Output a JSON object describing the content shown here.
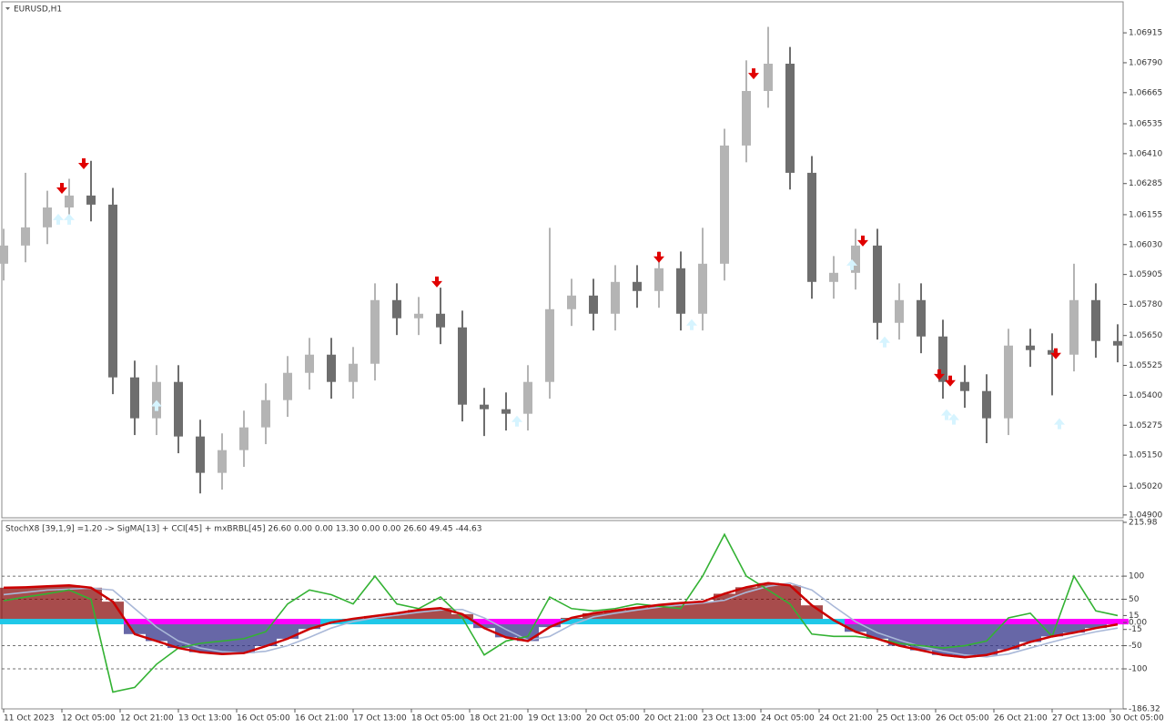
{
  "chart_data": [
    {
      "type": "candlestick",
      "title": "EURUSD,H1",
      "x": [
        0,
        6,
        12,
        18,
        24,
        30,
        36,
        42,
        48,
        54,
        60,
        66,
        72,
        78,
        84,
        90,
        96,
        102,
        108,
        114,
        120,
        126,
        132,
        138,
        144,
        150,
        156,
        162,
        168,
        174,
        180,
        186,
        192,
        198,
        204,
        210,
        216,
        222,
        228,
        234,
        240,
        246,
        252,
        258,
        264,
        270,
        276,
        282,
        288,
        294,
        300,
        306
      ],
      "open": [
        1.0595,
        1.06026,
        1.06102,
        1.06185,
        1.06235,
        1.06197,
        1.05475,
        1.05304,
        1.05456,
        1.05228,
        1.05076,
        1.05171,
        1.05266,
        1.0538,
        1.05494,
        1.0557,
        1.05456,
        1.05532,
        1.05798,
        1.05722,
        1.05741,
        1.05684,
        1.05361,
        1.05342,
        1.05323,
        1.05456,
        1.0576,
        1.05817,
        1.05741,
        1.05874,
        1.05836,
        1.05931,
        1.05741,
        1.0595,
        1.06444,
        1.06672,
        1.06786,
        1.0633,
        1.05874,
        1.05912,
        1.06026,
        1.05703,
        1.05798,
        1.05646,
        1.05456,
        1.05418,
        1.05304,
        1.05608,
        1.05589,
        1.0557,
        1.05798,
        1.05627
      ],
      "high": [
        1.06096,
        1.0633,
        1.06255,
        1.06305,
        1.0638,
        1.06267,
        1.05545,
        1.05526,
        1.05526,
        1.05298,
        1.05241,
        1.05336,
        1.0545,
        1.05564,
        1.0564,
        1.0564,
        1.05602,
        1.05868,
        1.05868,
        1.05811,
        1.0585,
        1.05754,
        1.05431,
        1.05412,
        1.05526,
        1.061,
        1.05887,
        1.05887,
        1.05944,
        1.05944,
        1.06001,
        1.06001,
        1.061,
        1.06514,
        1.068,
        1.0694,
        1.06856,
        1.064,
        1.05982,
        1.06096,
        1.06096,
        1.05868,
        1.05868,
        1.05716,
        1.05526,
        1.05488,
        1.05678,
        1.05678,
        1.05659,
        1.0595,
        1.05868,
        1.05697
      ],
      "low": [
        1.0588,
        1.05956,
        1.06032,
        1.06115,
        1.06127,
        1.05405,
        1.05234,
        1.05234,
        1.05158,
        1.0499,
        1.05006,
        1.05101,
        1.05196,
        1.0531,
        1.05424,
        1.05386,
        1.05386,
        1.05462,
        1.05652,
        1.05652,
        1.05614,
        1.05291,
        1.0523,
        1.05253,
        1.05253,
        1.05386,
        1.0569,
        1.05671,
        1.05671,
        1.05766,
        1.05766,
        1.05671,
        1.05671,
        1.0588,
        1.06374,
        1.06602,
        1.0626,
        1.05804,
        1.05804,
        1.05842,
        1.05633,
        1.05633,
        1.05576,
        1.05386,
        1.05348,
        1.052,
        1.05234,
        1.05519,
        1.054,
        1.055,
        1.05557,
        1.05538
      ],
      "close": [
        1.06026,
        1.06102,
        1.06185,
        1.06235,
        1.06197,
        1.05475,
        1.05304,
        1.05456,
        1.05228,
        1.05076,
        1.05171,
        1.05266,
        1.0538,
        1.05494,
        1.0557,
        1.05456,
        1.05532,
        1.05798,
        1.05722,
        1.05741,
        1.05684,
        1.05361,
        1.05342,
        1.05323,
        1.05456,
        1.0576,
        1.05817,
        1.05741,
        1.05874,
        1.05836,
        1.05931,
        1.05741,
        1.0595,
        1.06444,
        1.06672,
        1.06786,
        1.0633,
        1.05874,
        1.05912,
        1.06026,
        1.05703,
        1.05798,
        1.05646,
        1.05456,
        1.05418,
        1.05304,
        1.05608,
        1.05589,
        1.0557,
        1.05798,
        1.05627,
        1.05608
      ],
      "up_color": "#b4b4b4",
      "down_color": "#6e6e6e",
      "sell_signals": {
        "color": "#e00000",
        "x": [
          16,
          22,
          119,
          180,
          206,
          236,
          257,
          260,
          289
        ],
        "y": [
          1.06261,
          1.06364,
          1.0587,
          1.05973,
          1.0674,
          1.06041,
          1.05482,
          1.05456,
          1.0557
        ]
      },
      "buy_signals": {
        "color": "#d6f4ff",
        "x": [
          15,
          18,
          42,
          141,
          189,
          233,
          242,
          259,
          261,
          290
        ],
        "y": [
          1.0614,
          1.0614,
          1.05361,
          1.05296,
          1.05699,
          1.0595,
          1.05627,
          1.05323,
          1.05304,
          1.05285
        ]
      },
      "xlim": [
        -0.5,
        307.5
      ],
      "ylim": [
        1.04892,
        1.07037
      ],
      "yticks": [
        1.06915,
        {
          "value": 1.0679,
          "label": "1.06790"
        },
        1.06665,
        1.06535,
        {
          "value": 1.0641,
          "label": "1.06410"
        },
        1.06285,
        1.06155,
        {
          "value": 1.0603,
          "label": "1.06030"
        },
        1.05905,
        {
          "value": 1.0578,
          "label": "1.05780"
        },
        {
          "value": 1.0565,
          "label": "1.05650"
        },
        1.05525,
        {
          "value": 1.054,
          "label": "1.05400"
        },
        1.05275,
        {
          "value": 1.0515,
          "label": "1.05150"
        },
        {
          "value": 1.0502,
          "label": "1.05020"
        },
        {
          "value": 1.049,
          "label": "1.04900"
        }
      ]
    },
    {
      "type": "line",
      "title": "StochX8 [39,1,9] =1.20 -> SigMA[13] + CCI[45] + mxBRBL[45] 26.60 0.00 0.00 13.30 0.00 0.00 26.60 49.45 -44.63",
      "x": [
        0,
        6,
        12,
        18,
        24,
        30,
        36,
        42,
        48,
        54,
        60,
        66,
        72,
        78,
        84,
        90,
        96,
        102,
        108,
        114,
        120,
        126,
        132,
        138,
        144,
        150,
        156,
        162,
        168,
        174,
        180,
        186,
        192,
        198,
        204,
        210,
        216,
        222,
        228,
        234,
        240,
        246,
        252,
        258,
        264,
        270,
        276,
        282,
        288,
        294,
        300,
        306
      ],
      "series": [
        {
          "color": "#cc0000",
          "values": [
            75,
            76,
            78,
            80,
            75,
            45,
            -25,
            -40,
            -55,
            -64,
            -68,
            -66,
            -51,
            -35,
            -14,
            0,
            8,
            14,
            20,
            27,
            31,
            18,
            -12,
            -32,
            -40,
            -10,
            10,
            20,
            26,
            32,
            38,
            42,
            45,
            62,
            76,
            85,
            80,
            37,
            5,
            -20,
            -35,
            -50,
            -60,
            -70,
            -75,
            -70,
            -58,
            -42,
            -30,
            -22,
            -12,
            -4
          ]
        },
        {
          "color": "#a9b8d8",
          "values": [
            60,
            65,
            70,
            72,
            74,
            70,
            30,
            -10,
            -40,
            -55,
            -63,
            -66,
            -62,
            -50,
            -32,
            -12,
            2,
            10,
            16,
            22,
            27,
            28,
            10,
            -15,
            -38,
            -30,
            -5,
            12,
            20,
            27,
            33,
            38,
            42,
            48,
            65,
            78,
            85,
            70,
            35,
            2,
            -22,
            -38,
            -52,
            -62,
            -70,
            -74,
            -68,
            -55,
            -42,
            -30,
            -20,
            -12
          ]
        },
        {
          "color": "#33b233",
          "values": [
            47,
            55,
            62,
            70,
            50,
            -150,
            -140,
            -90,
            -55,
            -45,
            -40,
            -35,
            -20,
            40,
            70,
            60,
            40,
            100,
            40,
            30,
            55,
            10,
            -70,
            -40,
            -30,
            55,
            30,
            25,
            30,
            40,
            35,
            30,
            100,
            190,
            100,
            70,
            40,
            -25,
            -30,
            -30,
            -35,
            -45,
            -50,
            -55,
            -50,
            -40,
            10,
            20,
            -30,
            100,
            25,
            15
          ]
        }
      ],
      "histogram_colors": {
        "positive": "#8b1010",
        "negative": "#34348a"
      },
      "band_colors": {
        "positive": "#20c8e8",
        "negative": "#ff00ff"
      },
      "levels": [
        100,
        50,
        -50,
        -100
      ],
      "xlim": [
        -0.5,
        307.5
      ],
      "ylim": [
        -186.32,
        215.98
      ],
      "yticks": [
        215.98,
        100,
        50,
        15,
        {
          "value": 0,
          "label": "0.00"
        },
        -15,
        -50,
        -100,
        -186.32
      ],
      "xticks": [
        {
          "value": 0,
          "label": "11 Oct 2023"
        },
        {
          "value": 16,
          "label": "12 Oct 05:00"
        },
        {
          "value": 32,
          "label": "12 Oct 21:00"
        },
        {
          "value": 48,
          "label": "13 Oct 13:00"
        },
        {
          "value": 64,
          "label": "16 Oct 05:00"
        },
        {
          "value": 80,
          "label": "16 Oct 21:00"
        },
        {
          "value": 96,
          "label": "17 Oct 13:00"
        },
        {
          "value": 112,
          "label": "18 Oct 05:00"
        },
        {
          "value": 128,
          "label": "18 Oct 21:00"
        },
        {
          "value": 144,
          "label": "19 Oct 13:00"
        },
        {
          "value": 160,
          "label": "20 Oct 05:00"
        },
        {
          "value": 176,
          "label": "20 Oct 21:00"
        },
        {
          "value": 192,
          "label": "23 Oct 13:00"
        },
        {
          "value": 208,
          "label": "24 Oct 05:00"
        },
        {
          "value": 224,
          "label": "24 Oct 21:00"
        },
        {
          "value": 240,
          "label": "25 Oct 13:00"
        },
        {
          "value": 256,
          "label": "26 Oct 05:00"
        },
        {
          "value": 272,
          "label": "26 Oct 21:00"
        },
        {
          "value": 288,
          "label": "27 Oct 13:00"
        },
        {
          "value": 304,
          "label": "30 Oct 05:00"
        }
      ]
    }
  ]
}
